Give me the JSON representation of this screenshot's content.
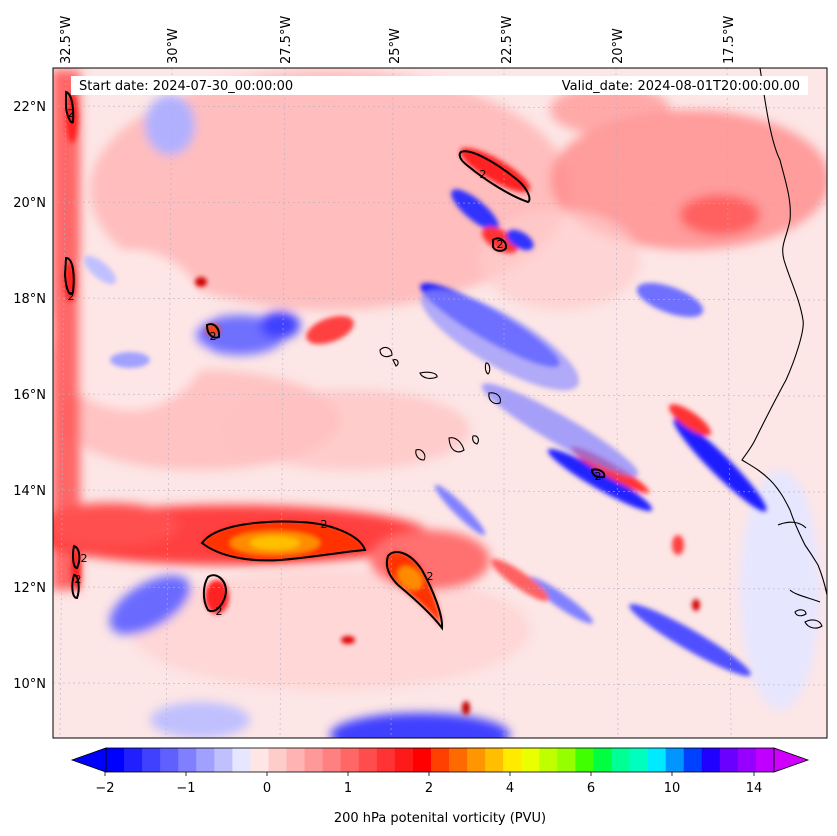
{
  "header": {
    "start_label": "Start date: 2024-07-30_00:00:00",
    "valid_label": "Valid_date: 2024-08-01T20:00:00.00"
  },
  "map": {
    "lon_labels": [
      "32.5°W",
      "30°W",
      "27.5°W",
      "25°W",
      "22.5°W",
      "20°W",
      "17.5°W"
    ],
    "lat_labels": [
      "22°N",
      "20°N",
      "18°N",
      "16°N",
      "14°N",
      "12°N",
      "10°N"
    ],
    "contour_level_label": "2",
    "colors": {
      "background": "#fde6e6",
      "contour": "#000000",
      "coastline": "#000000",
      "grid": "#b0b0c8"
    }
  },
  "colorbar": {
    "label": "200 hPa potenital vorticity (PVU)",
    "tick_labels": [
      "−2",
      "−1",
      "0",
      "1",
      "2",
      "4",
      "6",
      "10",
      "14"
    ],
    "colors": [
      "#0000ff",
      "#2020ff",
      "#4040ff",
      "#6060ff",
      "#8080ff",
      "#a0a0ff",
      "#c0c0ff",
      "#e6e6ff",
      "#ffe6e6",
      "#ffcccc",
      "#ffb3b3",
      "#ff9999",
      "#ff8080",
      "#ff6666",
      "#ff4d4d",
      "#ff3333",
      "#ff1a1a",
      "#ff0000",
      "#ff4000",
      "#ff6a00",
      "#ff9500",
      "#ffbf00",
      "#ffea00",
      "#eaff00",
      "#bfff00",
      "#95ff00",
      "#40ff00",
      "#00ff40",
      "#00ff95",
      "#00ffbf",
      "#00eaff",
      "#0095ff",
      "#0040ff",
      "#2000ff",
      "#6a00ff",
      "#9500ff",
      "#bf00ff"
    ],
    "extend_low_color": "#0000ff",
    "extend_high_color": "#d000ff"
  }
}
